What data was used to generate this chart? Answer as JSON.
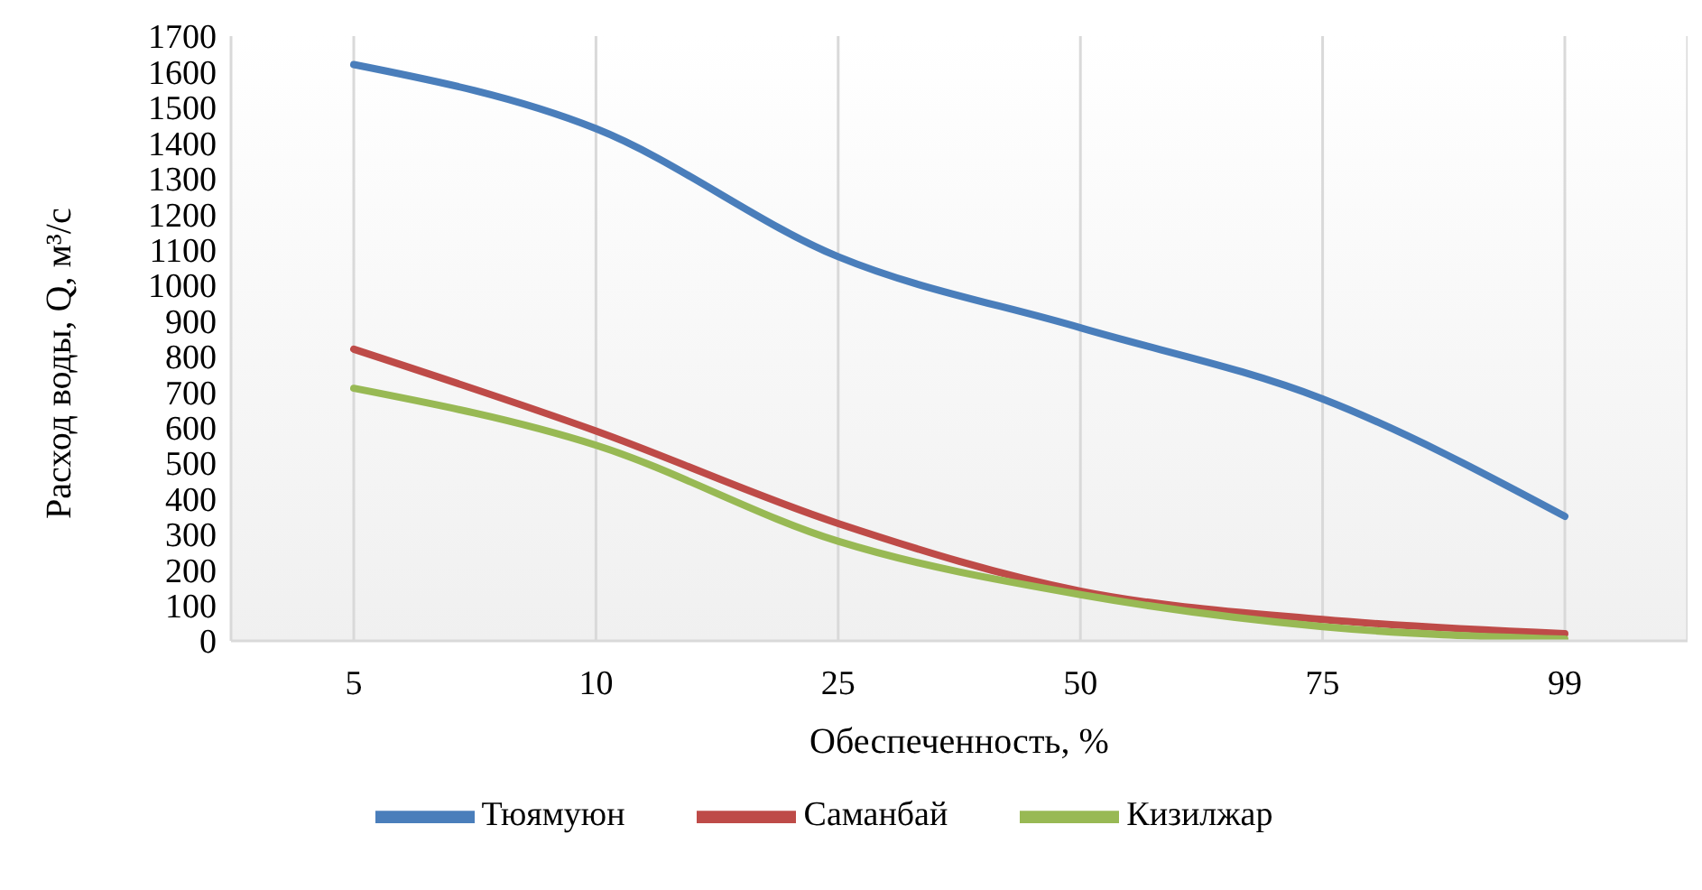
{
  "chart_data": {
    "type": "line",
    "xlabel": "Обеспеченность, %",
    "ylabel": "Расход воды, Q, м³/с",
    "categories": [
      "5",
      "10",
      "25",
      "50",
      "75",
      "99"
    ],
    "series": [
      {
        "name": "Тюямуюн",
        "color": "#4a7ebb",
        "values": [
          1620,
          1440,
          1080,
          880,
          680,
          350
        ]
      },
      {
        "name": "Саманбай",
        "color": "#be4b48",
        "values": [
          820,
          590,
          330,
          140,
          60,
          20
        ]
      },
      {
        "name": "Кизилжар",
        "color": "#98b954",
        "values": [
          710,
          550,
          280,
          130,
          40,
          5
        ]
      }
    ],
    "ylim": [
      0,
      1700
    ],
    "yticks": [
      0,
      100,
      200,
      300,
      400,
      500,
      600,
      700,
      800,
      900,
      1000,
      1100,
      1200,
      1300,
      1400,
      1500,
      1600,
      1700
    ],
    "grid": "x",
    "legend": "bottom",
    "marker": "none",
    "line_style": "solid"
  }
}
